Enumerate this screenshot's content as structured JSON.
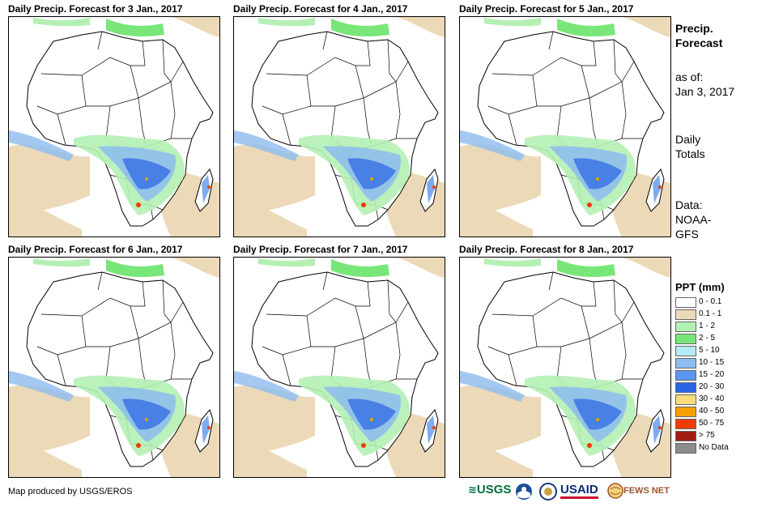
{
  "panels": [
    {
      "title": "Daily Precip. Forecast for 3 Jan., 2017"
    },
    {
      "title": "Daily Precip. Forecast for 4 Jan., 2017"
    },
    {
      "title": "Daily Precip. Forecast for 5 Jan., 2017"
    },
    {
      "title": "Daily Precip. Forecast for 6 Jan., 2017"
    },
    {
      "title": "Daily Precip. Forecast for 7 Jan., 2017"
    },
    {
      "title": "Daily Precip. Forecast for 8 Jan., 2017"
    }
  ],
  "side": {
    "title_line1": "Precip.",
    "title_line2": "Forecast",
    "asof_label": "as of:",
    "asof_date": "Jan 3, 2017",
    "totals_line1": "Daily",
    "totals_line2": "Totals",
    "data_line1": "Data:",
    "data_line2": "NOAA-",
    "data_line3": "GFS"
  },
  "legend": {
    "title": "PPT (mm)",
    "items": [
      {
        "label": "0 - 0.1",
        "color": "#ffffff"
      },
      {
        "label": "0.1 - 1",
        "color": "#ecd9b8"
      },
      {
        "label": "1 - 2",
        "color": "#b4f0b4"
      },
      {
        "label": "2 - 5",
        "color": "#78e678"
      },
      {
        "label": "5 - 10",
        "color": "#b4ecf5"
      },
      {
        "label": "10 - 15",
        "color": "#8cbcf0"
      },
      {
        "label": "15 - 20",
        "color": "#5a96ee"
      },
      {
        "label": "20 - 30",
        "color": "#2864e6"
      },
      {
        "label": "30 - 40",
        "color": "#fadc78"
      },
      {
        "label": "40 - 50",
        "color": "#f5a000"
      },
      {
        "label": "50 - 75",
        "color": "#f03c00"
      },
      {
        "label": "> 75",
        "color": "#a01e14"
      },
      {
        "label": "No Data",
        "color": "#8c8c8c"
      }
    ]
  },
  "footer": {
    "credit": "Map produced by USGS/EROS",
    "logo_usgs": "USGS",
    "logo_usaid": "USAID",
    "logo_fews": "FEWS NET"
  }
}
